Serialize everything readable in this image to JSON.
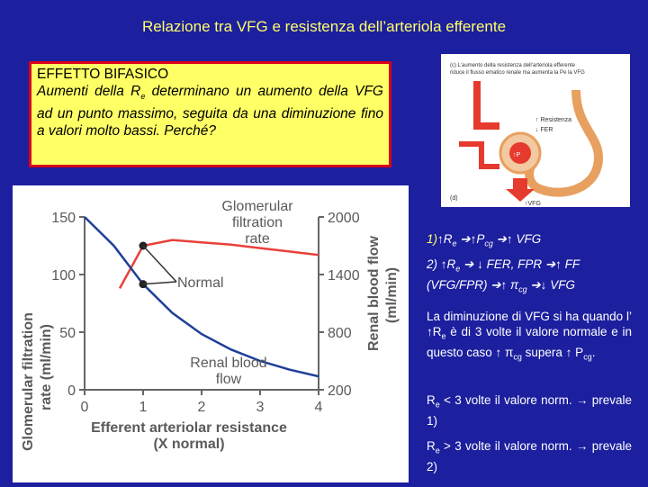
{
  "title": "Relazione tra VFG e resistenza dell’arteriola efferente",
  "effect": {
    "heading": "EFFETTO BIFASICO",
    "line_a": "Aumenti della R",
    "sub_a": "e",
    "line_b": " determinano un aumento della VFG ad un punto massimo, seguita da una diminuzione fino a valori molto bassi. Perché?"
  },
  "small_figure": {
    "caption_1": "(c) L’aumento della resistenza dell’arteriola efferente",
    "caption_2": "riduce il flusso ematico renale ma aumenta la P",
    "caption_3": "e la VFG",
    "label_resistenza": "↑ Resistenza",
    "label_fer": "↓ FER",
    "label_p": "↑P",
    "label_vfg": "↑VFG",
    "label_d": "(d)"
  },
  "chart_data": {
    "type": "line",
    "xlabel": "Efferent arteriolar resistance",
    "xlabel2": "(X normal)",
    "ylabel_left": "Glomerular filtration rate (ml/min)",
    "ylabel_left_1": "Glomerular filtration",
    "ylabel_left_2": "rate (ml/min)",
    "ylabel_right": "Renal blood flow (ml/min)",
    "ylabel_right_1": "Renal blood flow",
    "ylabel_right_2": "(ml/min)",
    "x_ticks": [
      "0",
      "1",
      "2",
      "3",
      "4"
    ],
    "y_left_ticks": [
      "0",
      "50",
      "100",
      "150"
    ],
    "y_right_ticks": [
      "200",
      "800",
      "1400",
      "2000"
    ],
    "xlim": [
      0,
      4
    ],
    "ylim_left": [
      0,
      150
    ],
    "ylim_right": [
      200,
      2000
    ],
    "series": [
      {
        "name": "Glomerular filtration rate",
        "axis": "left",
        "color": "#e8413c",
        "x": [
          0.6,
          1.0,
          1.5,
          2.0,
          2.5,
          3.0,
          3.5,
          4.0
        ],
        "y": [
          88,
          125,
          130,
          128,
          126,
          123,
          120,
          117
        ]
      },
      {
        "name": "Renal blood flow",
        "axis": "right",
        "color": "#1f3f99",
        "x": [
          0.0,
          0.5,
          1.0,
          1.5,
          2.0,
          2.5,
          3.0,
          3.5,
          4.0
        ],
        "y": [
          2000,
          1700,
          1300,
          1000,
          780,
          620,
          500,
          410,
          340
        ]
      }
    ],
    "labels": {
      "gfr_label_1": "Glomerular",
      "gfr_label_2": "filtration",
      "gfr_label_3": "rate",
      "normal": "Normal",
      "rbf_label_1": "Renal blood",
      "rbf_label_2": "flow"
    },
    "normal_points": [
      {
        "x": 1.0,
        "gfr": 125
      },
      {
        "x": 1.0,
        "rbf": 1300
      }
    ]
  },
  "right": {
    "r1_a": "1)",
    "r1_b": "↑R",
    "r1_c": "e",
    "r1_d": " ➔↑P",
    "r1_e": "cg",
    "r1_f": " ➔↑ VFG",
    "r2_a": "2) ↑R",
    "r2_b": "e",
    "r2_c": " ➔ ↓ FER, FPR  ➔↑ FF",
    "r2_d": "(VFG/FPR) ➔↑ π",
    "r2_e": "cg",
    "r2_f": " ➔↓ VFG",
    "r3_a": "La diminuzione di VFG si ha quando l’ ↑R",
    "r3_b": "e",
    "r3_c": " è di 3 volte il valore normale e in questo caso ↑ π",
    "r3_d": "cg",
    "r3_e": "  supera ↑ P",
    "r3_f": "cg",
    "r3_g": ".",
    "r4_a": "R",
    "r4_b": "e",
    "r4_c": " < 3 volte il valore norm. → prevale 1)",
    "r5_a": "R",
    "r5_b": "e",
    "r5_c": " > 3 volte il valore norm. → prevale 2)"
  }
}
